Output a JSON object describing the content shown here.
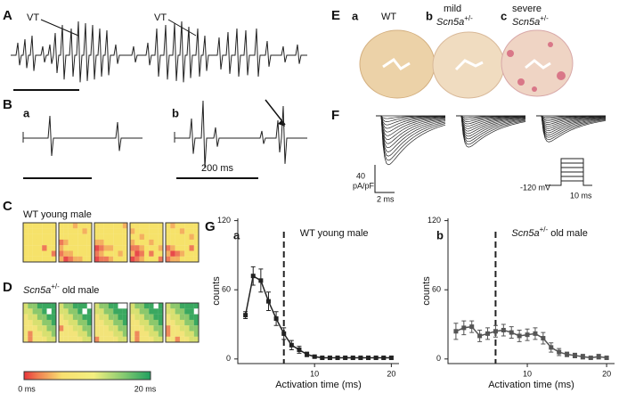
{
  "panels": {
    "A": {
      "label": "A",
      "annotations": [
        "VT",
        "VT"
      ]
    },
    "B": {
      "label": "B",
      "sub": [
        "a",
        "b"
      ],
      "scale": "200 ms"
    },
    "C": {
      "label": "C",
      "title": "WT young male"
    },
    "D": {
      "label": "D",
      "title": {
        "gene": "Scn5a",
        "sup": "+/-",
        "rest": " old male"
      },
      "colorbar": [
        "0 ms",
        "20 ms"
      ]
    },
    "E": {
      "label": "E",
      "columns": [
        {
          "letter": "a",
          "line1": "WT"
        },
        {
          "letter": "b",
          "line1": "mild",
          "gene": "Scn5a",
          "sup": "+/-"
        },
        {
          "letter": "c",
          "line1": "severe",
          "gene": "Scn5a",
          "sup": "+/-"
        }
      ]
    },
    "F": {
      "label": "F",
      "current_scale": [
        "40",
        "pA/pF"
      ],
      "time_scale": "2 ms",
      "voltage": "-120 mV",
      "protocol_time": "10 ms"
    },
    "G": {
      "label": "G"
    }
  },
  "chart_data": [
    {
      "type": "line",
      "panel": "a",
      "title": "WT young male",
      "xlabel": "Activation time (ms)",
      "ylabel": "counts",
      "x": [
        1,
        2,
        3,
        4,
        5,
        6,
        7,
        8,
        9,
        10,
        11,
        12,
        13,
        14,
        15,
        16,
        17,
        18,
        19,
        20
      ],
      "series": [
        {
          "color": "#222222",
          "values": [
            38,
            72,
            68,
            50,
            35,
            22,
            12,
            8,
            4,
            2,
            1,
            1,
            1,
            1,
            1,
            1,
            1,
            1,
            1,
            1
          ],
          "errors": [
            3,
            8,
            10,
            8,
            6,
            5,
            4,
            3,
            2,
            1,
            1,
            1,
            1,
            1,
            1,
            1,
            1,
            1,
            1,
            1
          ]
        }
      ],
      "xlim": [
        0,
        21
      ],
      "ylim": [
        -4,
        122
      ],
      "xticks": [
        10,
        20
      ],
      "yticks": [
        0,
        60,
        120
      ],
      "vline": 6
    },
    {
      "type": "line",
      "panel": "b",
      "title": {
        "gene": "Scn5a",
        "sup": "+/-",
        "rest": " old male"
      },
      "xlabel": "Activation time (ms)",
      "ylabel": "counts",
      "x": [
        1,
        2,
        3,
        4,
        5,
        6,
        7,
        8,
        9,
        10,
        11,
        12,
        13,
        14,
        15,
        16,
        17,
        18,
        19,
        20
      ],
      "series": [
        {
          "color": "#555555",
          "values": [
            24,
            27,
            28,
            20,
            22,
            24,
            25,
            23,
            20,
            21,
            22,
            18,
            10,
            6,
            4,
            3,
            2,
            1,
            2,
            1
          ],
          "errors": [
            7,
            6,
            5,
            5,
            5,
            5,
            5,
            5,
            5,
            5,
            5,
            5,
            4,
            3,
            2,
            2,
            2,
            1,
            2,
            1
          ]
        }
      ],
      "xlim": [
        0,
        21
      ],
      "ylim": [
        -4,
        122
      ],
      "xticks": [
        10,
        20
      ],
      "yticks": [
        0,
        60,
        120
      ],
      "vline": 6
    }
  ]
}
